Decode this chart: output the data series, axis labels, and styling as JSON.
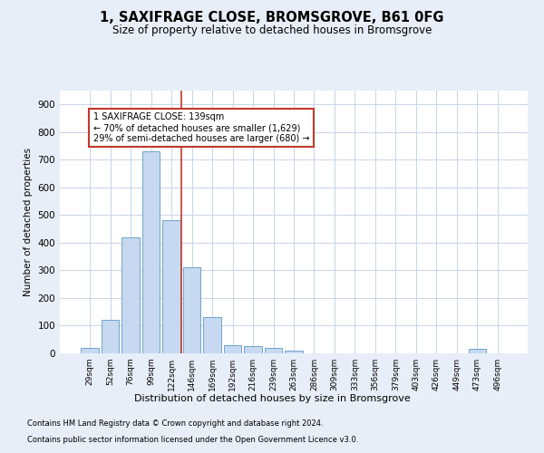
{
  "title": "1, SAXIFRAGE CLOSE, BROMSGROVE, B61 0FG",
  "subtitle": "Size of property relative to detached houses in Bromsgrove",
  "xlabel": "Distribution of detached houses by size in Bromsgrove",
  "ylabel": "Number of detached properties",
  "footer1": "Contains HM Land Registry data © Crown copyright and database right 2024.",
  "footer2": "Contains public sector information licensed under the Open Government Licence v3.0.",
  "bar_labels": [
    "29sqm",
    "52sqm",
    "76sqm",
    "99sqm",
    "122sqm",
    "146sqm",
    "169sqm",
    "192sqm",
    "216sqm",
    "239sqm",
    "263sqm",
    "286sqm",
    "309sqm",
    "333sqm",
    "356sqm",
    "379sqm",
    "403sqm",
    "426sqm",
    "449sqm",
    "473sqm",
    "496sqm"
  ],
  "bar_values": [
    20,
    120,
    420,
    730,
    480,
    310,
    130,
    30,
    25,
    20,
    10,
    0,
    0,
    0,
    0,
    0,
    0,
    0,
    0,
    15,
    0
  ],
  "bar_color": "#c6d9f0",
  "bar_edge_color": "#6ea4cc",
  "vline_x_idx": 4.5,
  "vline_color": "#c0392b",
  "annotation_text": "1 SAXIFRAGE CLOSE: 139sqm\n← 70% of detached houses are smaller (1,629)\n29% of semi-detached houses are larger (680) →",
  "annotation_box_color": "white",
  "annotation_box_edge_color": "#c0392b",
  "ylim": [
    0,
    950
  ],
  "yticks": [
    0,
    100,
    200,
    300,
    400,
    500,
    600,
    700,
    800,
    900
  ],
  "bg_color": "#e8eef7",
  "plot_bg_color": "#ffffff",
  "grid_color": "#c8d4e8"
}
